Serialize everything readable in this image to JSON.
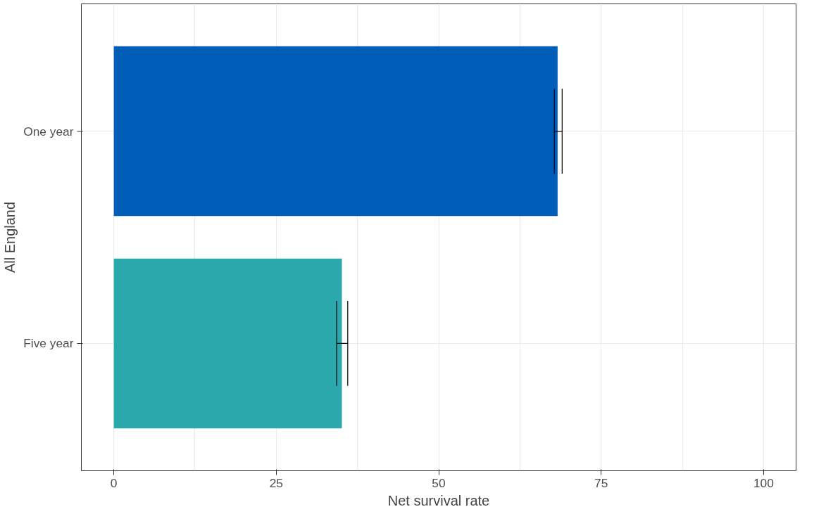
{
  "chart_data": {
    "type": "bar",
    "orientation": "horizontal",
    "xlabel": "Net survival rate",
    "ylabel": "All England",
    "categories": [
      "One year",
      "Five year"
    ],
    "values": [
      68.3,
      35.1
    ],
    "colors": [
      "#005eb8",
      "#2ba8ab"
    ],
    "errors": [
      [
        67.8,
        69.0
      ],
      [
        34.3,
        36.0
      ]
    ],
    "xlim": [
      -5,
      105
    ],
    "xticks": [
      0,
      25,
      50,
      75,
      100
    ],
    "grid": true
  }
}
